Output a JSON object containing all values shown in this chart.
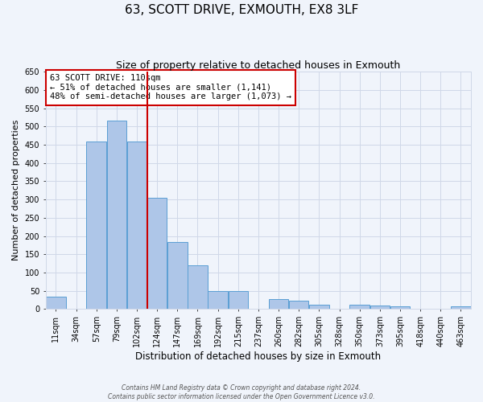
{
  "title": "63, SCOTT DRIVE, EXMOUTH, EX8 3LF",
  "subtitle": "Size of property relative to detached houses in Exmouth",
  "xlabel": "Distribution of detached houses by size in Exmouth",
  "ylabel": "Number of detached properties",
  "bar_labels": [
    "11sqm",
    "34sqm",
    "57sqm",
    "79sqm",
    "102sqm",
    "124sqm",
    "147sqm",
    "169sqm",
    "192sqm",
    "215sqm",
    "237sqm",
    "260sqm",
    "282sqm",
    "305sqm",
    "328sqm",
    "350sqm",
    "373sqm",
    "395sqm",
    "418sqm",
    "440sqm",
    "463sqm"
  ],
  "bar_values": [
    35,
    0,
    458,
    515,
    458,
    305,
    183,
    120,
    50,
    50,
    0,
    28,
    22,
    13,
    0,
    13,
    10,
    8,
    0,
    0,
    8
  ],
  "bar_color": "#aec6e8",
  "bar_edge_color": "#5a9fd4",
  "grid_color": "#d0d8e8",
  "background_color": "#f0f4fb",
  "vline_x": 4.5,
  "vline_color": "#cc0000",
  "ylim": [
    0,
    650
  ],
  "yticks": [
    0,
    50,
    100,
    150,
    200,
    250,
    300,
    350,
    400,
    450,
    500,
    550,
    600,
    650
  ],
  "annotation_title": "63 SCOTT DRIVE: 110sqm",
  "annotation_line1": "← 51% of detached houses are smaller (1,141)",
  "annotation_line2": "48% of semi-detached houses are larger (1,073) →",
  "annotation_box_color": "#ffffff",
  "annotation_edge_color": "#cc0000",
  "footer_line1": "Contains HM Land Registry data © Crown copyright and database right 2024.",
  "footer_line2": "Contains public sector information licensed under the Open Government Licence v3.0.",
  "title_fontsize": 11,
  "subtitle_fontsize": 9,
  "xlabel_fontsize": 8.5,
  "ylabel_fontsize": 8,
  "tick_fontsize": 7,
  "annotation_fontsize": 7.5,
  "footer_fontsize": 5.5
}
